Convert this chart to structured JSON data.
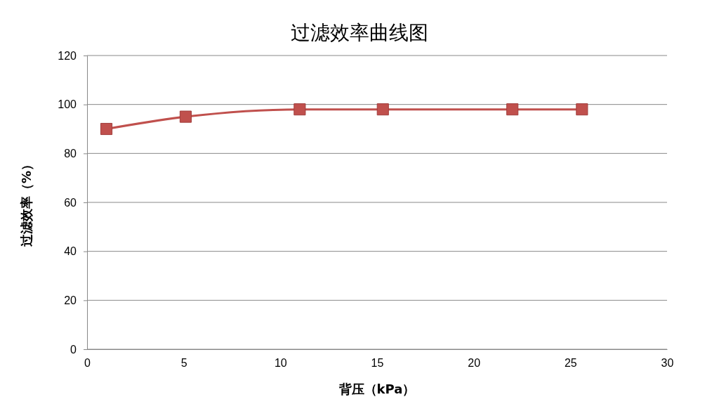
{
  "chart_data": {
    "type": "line",
    "title": "过滤效率曲线图",
    "xlabel": "背压（kPa）",
    "ylabel": "过滤效率（%）",
    "x": [
      1,
      5.1,
      11,
      15.3,
      22,
      25.6
    ],
    "series": [
      {
        "color": "#c0504d",
        "values": [
          90,
          95,
          98,
          98,
          98,
          98
        ]
      }
    ],
    "xlim": [
      0,
      30
    ],
    "xticks": [
      0,
      5,
      10,
      15,
      20,
      25,
      30
    ],
    "ylim": [
      0,
      120
    ],
    "yticks": [
      0,
      20,
      40,
      60,
      80,
      100,
      120
    ],
    "grid": "y",
    "marker": "square",
    "line_style": "solid"
  }
}
